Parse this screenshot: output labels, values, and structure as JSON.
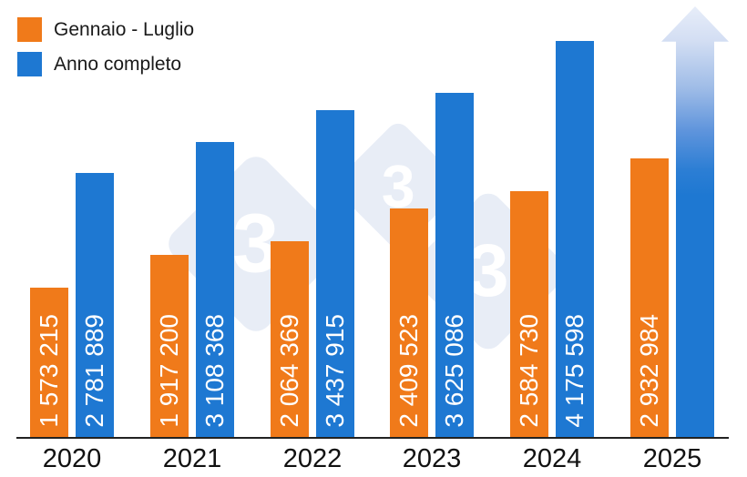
{
  "chart_data": {
    "type": "bar",
    "title": "",
    "categories": [
      "2020",
      "2021",
      "2022",
      "2023",
      "2024",
      "2025"
    ],
    "series": [
      {
        "name": "Gennaio - Luglio",
        "color": "#F07A1A",
        "values": [
          1573215,
          1917200,
          2064369,
          2409523,
          2584730,
          2932984
        ],
        "labels": [
          "1 573 215",
          "1 917 200",
          "2 064 369",
          "2 409 523",
          "2 584 730",
          "2 932 984"
        ]
      },
      {
        "name": "Anno completo",
        "color": "#1E78D2",
        "values": [
          2781889,
          3108368,
          3437915,
          3625086,
          4175598,
          null
        ],
        "labels": [
          "2 781 889",
          "3 108 368",
          "3 437 915",
          "3 625 086",
          "4 175 598",
          ""
        ]
      }
    ],
    "annotation": "2025 anno completo: freccia ascendente con gradiente, senza valore",
    "xlabel": "",
    "ylabel": "",
    "ylim": [
      0,
      4622000
    ],
    "grid": false,
    "legend_position": "top-left",
    "value_label_orientation": "vertical-inside-bar"
  },
  "legend": {
    "items_note": "labels bound from chart_data.series names"
  },
  "watermark": {
    "digit": "3"
  },
  "colors": {
    "axis": "#222222",
    "year_label_text": "#111111",
    "bar_value_text": "#FFFFFF",
    "watermark_fill": "#E8EDF6",
    "background": "#FFFFFF"
  }
}
